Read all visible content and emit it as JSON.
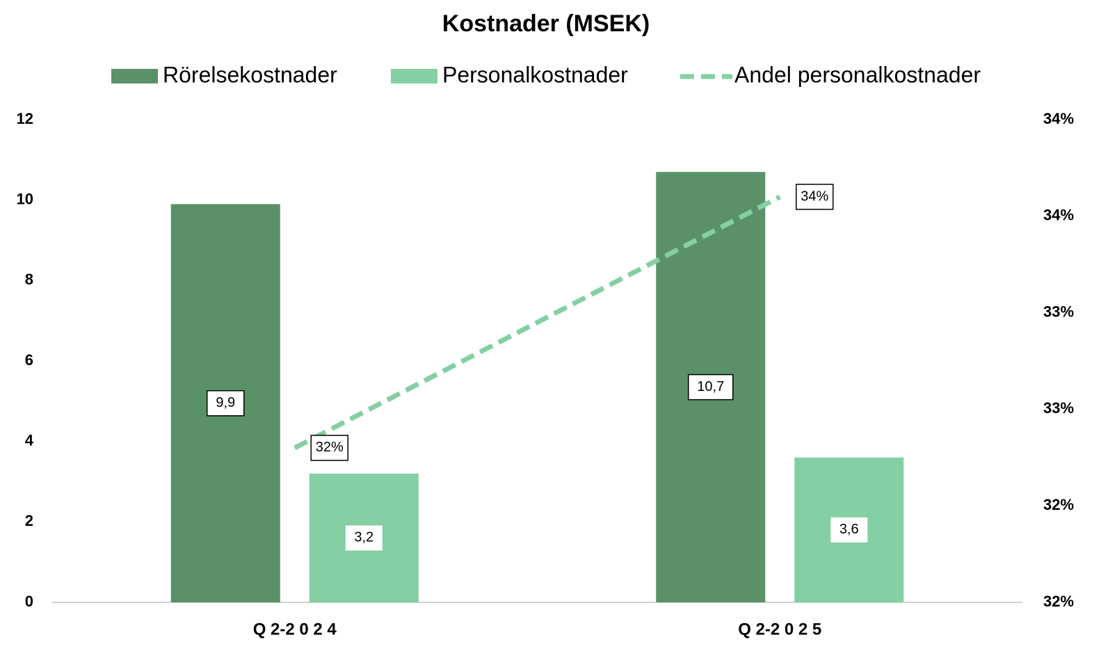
{
  "chart_data": {
    "type": "bar",
    "title": "Kostnader (MSEK)",
    "categories": [
      "Q 2-2 0 2 4",
      "Q 2-2 0 2 5"
    ],
    "series": [
      {
        "name": "Rörelsekostnader",
        "type": "bar",
        "color": "#5b9169",
        "values": [
          9.9,
          10.7
        ],
        "value_labels": [
          "9,9",
          "10,7"
        ]
      },
      {
        "name": "Personalkostnader",
        "type": "bar",
        "color": "#84cfa4",
        "values": [
          3.2,
          3.6
        ],
        "value_labels": [
          "3,2",
          "3,6"
        ]
      },
      {
        "name": "Andel personalkostnader",
        "type": "line",
        "axis": "y2",
        "color": "#84cfa4",
        "dashed": true,
        "values": [
          32.3,
          33.6
        ],
        "value_labels": [
          "32%",
          "34%"
        ]
      }
    ],
    "ylim": [
      0,
      12
    ],
    "yticks": [
      0,
      2,
      4,
      6,
      8,
      10,
      12
    ],
    "y2lim": [
      31.5,
      34
    ],
    "y2ticks": [
      {
        "value": 31.5,
        "label": "32%"
      },
      {
        "value": 32,
        "label": "32%"
      },
      {
        "value": 32.5,
        "label": "33%"
      },
      {
        "value": 33,
        "label": "33%"
      },
      {
        "value": 33.5,
        "label": "34%"
      },
      {
        "value": 34,
        "label": "34%"
      }
    ]
  }
}
